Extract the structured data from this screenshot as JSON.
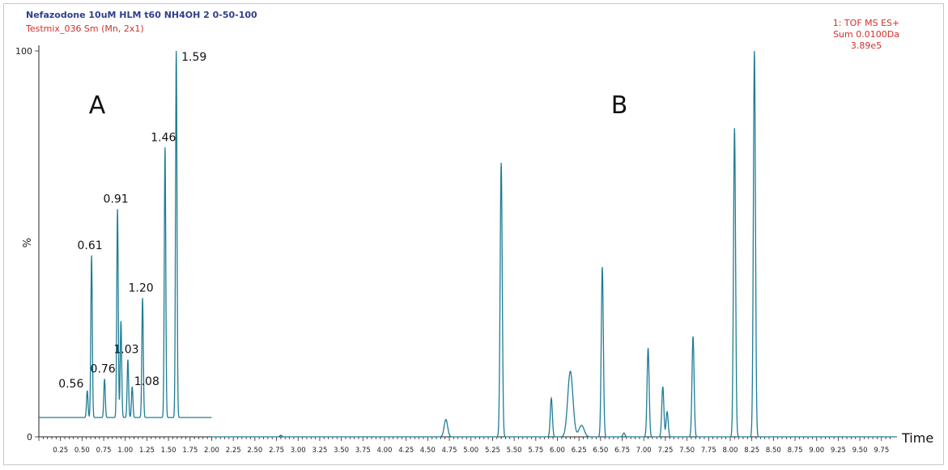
{
  "header": {
    "title": "Nefazodone 10uM HLM t60 NH4OH 2 0-50-100",
    "subtitle": "Testmix_036 Sm (Mn, 2x1)"
  },
  "info": {
    "line1": "1: TOF MS ES+",
    "line2": "Sum 0.0100Da",
    "line3": "3.89e5"
  },
  "chart_data": {
    "type": "line",
    "xlabel": "Time",
    "ylabel": "%",
    "xlim": [
      0.0,
      9.93
    ],
    "ylim": [
      0,
      100
    ],
    "y_ticks": [
      0,
      100
    ],
    "x_ticks": [
      "0.25",
      "0.50",
      "0.75",
      "1.00",
      "1.25",
      "1.50",
      "1.75",
      "2.00",
      "2.25",
      "2.50",
      "2.75",
      "3.00",
      "3.25",
      "3.50",
      "3.75",
      "4.00",
      "4.25",
      "4.50",
      "4.75",
      "5.00",
      "5.25",
      "5.50",
      "5.75",
      "6.00",
      "6.25",
      "6.50",
      "6.75",
      "7.00",
      "7.25",
      "7.50",
      "7.75",
      "8.00",
      "8.25",
      "8.50",
      "8.75",
      "9.00",
      "9.25",
      "9.50",
      "9.75"
    ],
    "colors": {
      "trace": "#1f7d96",
      "title": "#2e3f8c",
      "info": "#d0312d"
    },
    "section_labels": [
      "A",
      "B"
    ],
    "series": [
      {
        "segment": "A",
        "x_range": [
          0.0,
          2.0
        ],
        "baseline": 5,
        "peaks": [
          {
            "rt": 0.56,
            "height": 12,
            "label": "0.56"
          },
          {
            "rt": 0.61,
            "height": 47,
            "label": "0.61"
          },
          {
            "rt": 0.76,
            "height": 15,
            "label": "0.76"
          },
          {
            "rt": 0.91,
            "height": 59,
            "label": "0.91"
          },
          {
            "rt": 0.95,
            "height": 30,
            "label": ""
          },
          {
            "rt": 1.03,
            "height": 20,
            "label": "1.03"
          },
          {
            "rt": 1.08,
            "height": 13,
            "label": "1.08"
          },
          {
            "rt": 1.2,
            "height": 36,
            "label": "1.20"
          },
          {
            "rt": 1.46,
            "height": 75,
            "label": "1.46"
          },
          {
            "rt": 1.59,
            "height": 100,
            "label": "1.59"
          }
        ]
      },
      {
        "segment": "B",
        "x_range": [
          2.0,
          9.93
        ],
        "baseline": 0,
        "peaks": [
          {
            "rt": 2.8,
            "height": 0.4
          },
          {
            "rt": 4.71,
            "height": 4.5
          },
          {
            "rt": 5.35,
            "height": 71
          },
          {
            "rt": 5.93,
            "height": 10
          },
          {
            "rt": 6.15,
            "height": 17
          },
          {
            "rt": 6.28,
            "height": 3
          },
          {
            "rt": 6.52,
            "height": 44
          },
          {
            "rt": 6.77,
            "height": 1
          },
          {
            "rt": 7.05,
            "height": 23
          },
          {
            "rt": 7.22,
            "height": 13
          },
          {
            "rt": 7.27,
            "height": 6.5
          },
          {
            "rt": 7.57,
            "height": 26
          },
          {
            "rt": 8.05,
            "height": 80
          },
          {
            "rt": 8.28,
            "height": 100
          }
        ]
      }
    ]
  }
}
